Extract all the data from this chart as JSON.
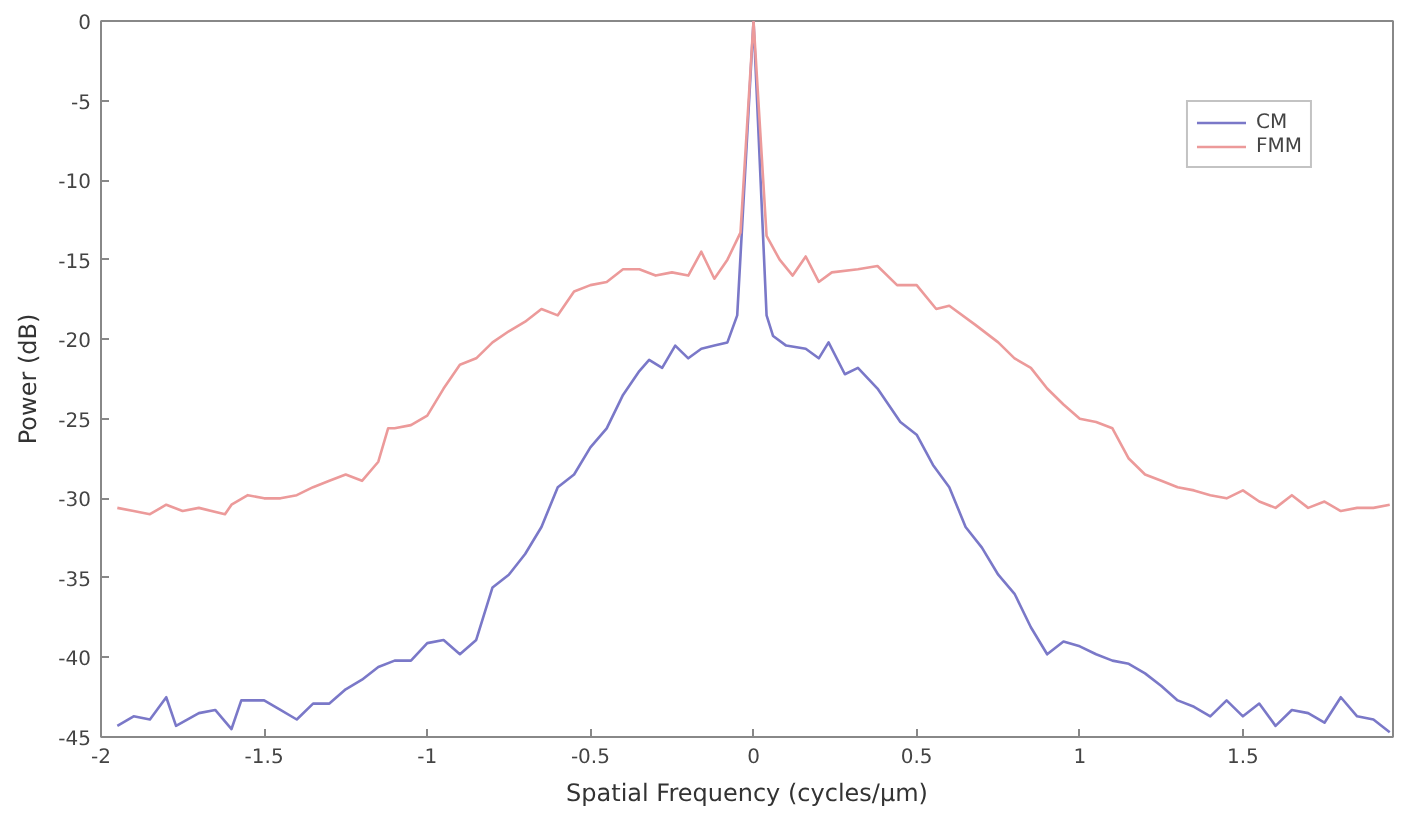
{
  "chart_data": {
    "type": "line",
    "xlabel": "Spatial Frequency (cycles/μm)",
    "ylabel": "Power (dB)",
    "xlim": [
      -2,
      1.96
    ],
    "ylim": [
      -45,
      0
    ],
    "xticks": [
      -2,
      -1.5,
      -1,
      -0.5,
      0,
      0.5,
      1,
      1.5
    ],
    "yticks": [
      -45,
      -40,
      -35,
      -30,
      -25,
      -20,
      -15,
      -10,
      -5,
      0
    ],
    "grid": false,
    "legend": "top right",
    "line_style": "solid",
    "series": [
      {
        "name": "CM",
        "color": "#7a78c8",
        "x": [
          -1.95,
          -1.9,
          -1.85,
          -1.8,
          -1.77,
          -1.7,
          -1.65,
          -1.6,
          -1.57,
          -1.5,
          -1.45,
          -1.4,
          -1.35,
          -1.3,
          -1.25,
          -1.2,
          -1.15,
          -1.1,
          -1.05,
          -1.0,
          -0.95,
          -0.9,
          -0.85,
          -0.8,
          -0.75,
          -0.7,
          -0.65,
          -0.6,
          -0.55,
          -0.5,
          -0.45,
          -0.4,
          -0.35,
          -0.32,
          -0.28,
          -0.24,
          -0.2,
          -0.16,
          -0.12,
          -0.08,
          -0.05,
          0,
          0.04,
          0.06,
          0.1,
          0.16,
          0.2,
          0.23,
          0.28,
          0.32,
          0.38,
          0.45,
          0.5,
          0.55,
          0.6,
          0.65,
          0.7,
          0.75,
          0.8,
          0.85,
          0.9,
          0.95,
          1.0,
          1.05,
          1.1,
          1.15,
          1.2,
          1.25,
          1.3,
          1.35,
          1.4,
          1.45,
          1.5,
          1.55,
          1.6,
          1.65,
          1.7,
          1.75,
          1.8,
          1.85,
          1.9,
          1.95
        ],
        "values": [
          -44.3,
          -43.7,
          -43.9,
          -42.5,
          -44.3,
          -43.5,
          -43.3,
          -44.5,
          -42.7,
          -42.7,
          -43.3,
          -43.9,
          -42.9,
          -42.9,
          -42.0,
          -41.4,
          -40.6,
          -40.2,
          -40.2,
          -39.1,
          -38.9,
          -39.8,
          -38.9,
          -35.6,
          -34.8,
          -33.5,
          -31.8,
          -29.3,
          -28.5,
          -26.8,
          -25.6,
          -23.5,
          -22.0,
          -21.3,
          -21.8,
          -20.4,
          -21.2,
          -20.6,
          -20.4,
          -20.2,
          -18.5,
          0,
          -18.5,
          -19.8,
          -20.4,
          -20.6,
          -21.2,
          -20.2,
          -22.2,
          -21.8,
          -23.1,
          -25.2,
          -26.0,
          -27.9,
          -29.3,
          -31.8,
          -33.1,
          -34.8,
          -36.0,
          -38.1,
          -39.8,
          -39.0,
          -39.3,
          -39.8,
          -40.2,
          -40.4,
          -41.0,
          -41.8,
          -42.7,
          -43.1,
          -43.7,
          -42.7,
          -43.7,
          -42.9,
          -44.3,
          -43.3,
          -43.5,
          -44.1,
          -42.5,
          -43.7,
          -43.9,
          -44.7
        ]
      },
      {
        "name": "FMM",
        "color": "#ec9a9a",
        "x": [
          -1.95,
          -1.9,
          -1.85,
          -1.8,
          -1.75,
          -1.7,
          -1.62,
          -1.6,
          -1.55,
          -1.5,
          -1.45,
          -1.4,
          -1.35,
          -1.3,
          -1.25,
          -1.2,
          -1.15,
          -1.12,
          -1.1,
          -1.05,
          -1.0,
          -0.95,
          -0.9,
          -0.85,
          -0.8,
          -0.75,
          -0.7,
          -0.65,
          -0.6,
          -0.55,
          -0.5,
          -0.45,
          -0.4,
          -0.35,
          -0.3,
          -0.25,
          -0.2,
          -0.16,
          -0.12,
          -0.08,
          -0.04,
          0,
          0.04,
          0.08,
          0.12,
          0.16,
          0.2,
          0.24,
          0.32,
          0.38,
          0.44,
          0.5,
          0.56,
          0.6,
          0.68,
          0.75,
          0.8,
          0.85,
          0.9,
          0.95,
          1.0,
          1.05,
          1.1,
          1.15,
          1.2,
          1.25,
          1.3,
          1.35,
          1.4,
          1.45,
          1.5,
          1.55,
          1.6,
          1.65,
          1.7,
          1.75,
          1.8,
          1.85,
          1.9,
          1.95
        ],
        "values": [
          -30.6,
          -30.8,
          -31.0,
          -30.4,
          -30.8,
          -30.6,
          -31.0,
          -30.4,
          -29.8,
          -30.0,
          -30.0,
          -29.8,
          -29.3,
          -28.9,
          -28.5,
          -28.9,
          -27.7,
          -25.6,
          -25.6,
          -25.4,
          -24.8,
          -23.1,
          -21.6,
          -21.2,
          -20.2,
          -19.5,
          -18.9,
          -18.1,
          -18.5,
          -17.0,
          -16.6,
          -16.4,
          -15.6,
          -15.6,
          -16.0,
          -15.8,
          -16.0,
          -14.5,
          -16.2,
          -15.0,
          -13.3,
          0,
          -13.5,
          -15.0,
          -16.0,
          -14.8,
          -16.4,
          -15.8,
          -15.6,
          -15.4,
          -16.6,
          -16.6,
          -18.1,
          -17.9,
          -19.1,
          -20.2,
          -21.2,
          -21.8,
          -23.1,
          -24.1,
          -25.0,
          -25.2,
          -25.6,
          -27.5,
          -28.5,
          -28.9,
          -29.3,
          -29.5,
          -29.8,
          -30.0,
          -29.5,
          -30.2,
          -30.6,
          -29.8,
          -30.6,
          -30.2,
          -30.8,
          -30.6,
          -30.6,
          -30.4
        ]
      }
    ]
  }
}
